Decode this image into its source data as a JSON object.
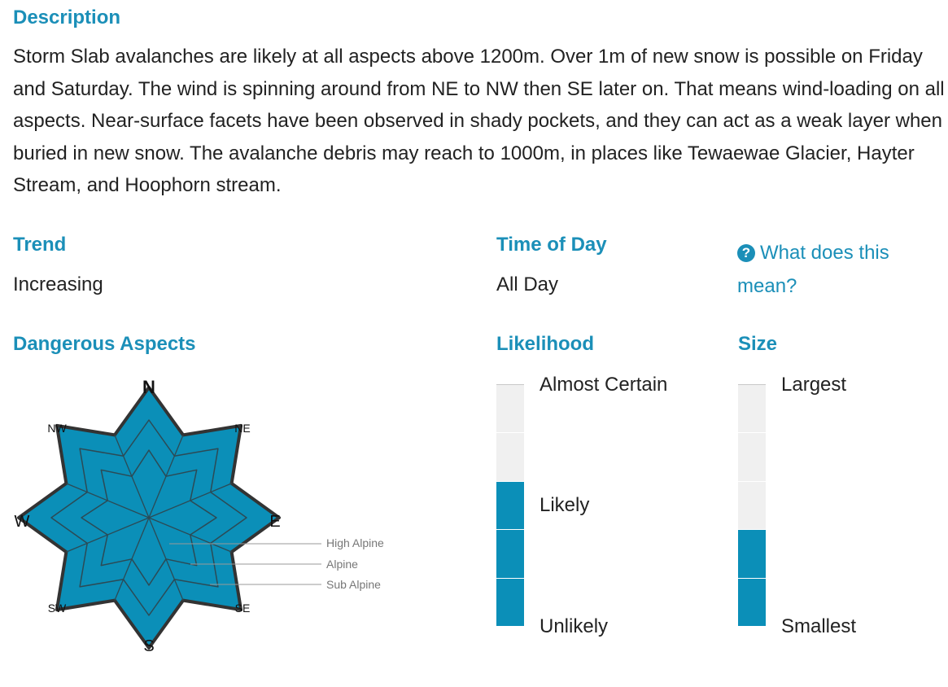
{
  "description": {
    "heading": "Description",
    "text": "Storm Slab avalanches are likely at all aspects above 1200m. Over 1m of new snow is possible on Friday and Saturday. The wind is spinning around from NE to NW then SE later on. That means wind-loading on all aspects. Near-surface facets have been observed in shady pockets, and they can act as a weak layer when buried in new snow. The avalanche debris may reach to 1000m, in places like Tewaewae Glacier, Hayter Stream, and Hoophorn stream."
  },
  "trend": {
    "heading": "Trend",
    "value": "Increasing"
  },
  "time_of_day": {
    "heading": "Time of Day",
    "value": "All Day"
  },
  "help": {
    "icon": "question-circle-icon",
    "label": "What does this mean?"
  },
  "dangerous_aspects": {
    "heading": "Dangerous Aspects",
    "directions": {
      "n": "N",
      "ne": "NE",
      "e": "E",
      "se": "SE",
      "s": "S",
      "sw": "SW",
      "w": "W",
      "nw": "NW"
    },
    "legend": [
      "High Alpine",
      "Alpine",
      "Sub Alpine"
    ],
    "active_color": "#0b8fb8",
    "all_aspects_dangerous": true
  },
  "likelihood": {
    "heading": "Likelihood",
    "top_label": "Almost Certain",
    "mid_label": "Likely",
    "bottom_label": "Unlikely",
    "levels": 5,
    "filled": 3
  },
  "size": {
    "heading": "Size",
    "top_label": "Largest",
    "bottom_label": "Smallest",
    "levels": 5,
    "filled": 2
  },
  "colors": {
    "accent": "#1b8fb8",
    "fill": "#0b8fb8",
    "empty": "#f0f0f0"
  }
}
